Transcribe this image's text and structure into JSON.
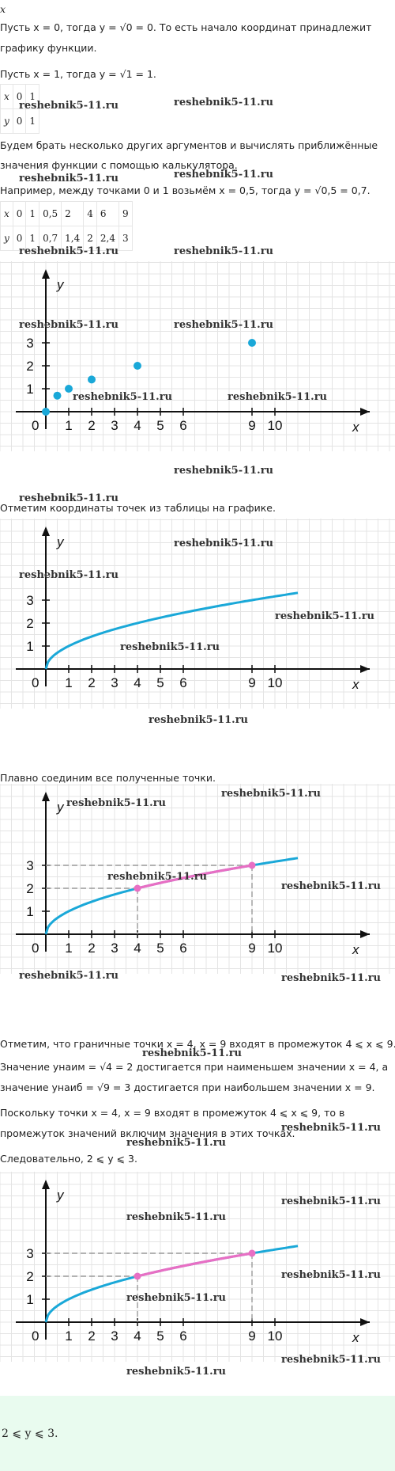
{
  "header": {
    "var": "x"
  },
  "p1": "Пусть x = 0, тогда y = √0 = 0. То есть начало координат принадлежит",
  "p1b": "графику функции.",
  "p2": "Пусть x = 1, тогда y = √1 = 1.",
  "table1": {
    "rows": [
      [
        "x",
        "0",
        "1"
      ],
      [
        "y",
        "0",
        "1"
      ]
    ]
  },
  "p3": "Будем брать несколько других аргументов и вычислять приближённые",
  "p3b": "значения функции с помощью калькулятора.",
  "p4": "Например, между точками 0 и 1 возьмём x = 0,5, тогда y = √0,5 = 0,7.",
  "table2": {
    "rows": [
      [
        "x",
        "0",
        "1",
        "0,5",
        "2",
        "4",
        "6",
        "9"
      ],
      [
        "y",
        "0",
        "1",
        "0,7",
        "1,4",
        "2",
        "2,4",
        "3"
      ]
    ]
  },
  "watermark": "reshebnik5-11.ru",
  "graph_labels": {
    "x": "x",
    "y": "y",
    "origin": "0"
  },
  "chart_data": [
    {
      "type": "scatter",
      "function": "y = √x",
      "points": [
        [
          0,
          0
        ],
        [
          0.5,
          0.7
        ],
        [
          1,
          1
        ],
        [
          2,
          1.4
        ],
        [
          4,
          2
        ],
        [
          9,
          3
        ]
      ],
      "xticks": [
        "1",
        "2",
        "3",
        "4",
        "5",
        "6",
        "9",
        "10"
      ],
      "yticks": [
        "1",
        "2",
        "3"
      ],
      "point_color": "#1aa8d8"
    },
    {
      "type": "line",
      "function": "y = √x",
      "x_range": [
        0,
        11
      ],
      "line_color": "#1aa8d8",
      "xticks": [
        "1",
        "2",
        "3",
        "4",
        "5",
        "6",
        "9",
        "10"
      ],
      "yticks": [
        "1",
        "2",
        "3"
      ]
    },
    {
      "type": "line",
      "function": "y = √x",
      "x_range": [
        0,
        11
      ],
      "highlight_range": [
        4,
        9
      ],
      "highlight_color": "#e86fc4",
      "marked_points": [
        [
          4,
          2
        ],
        [
          9,
          3
        ]
      ],
      "xticks": [
        "1",
        "2",
        "3",
        "4",
        "5",
        "6",
        "9",
        "10"
      ],
      "yticks": [
        "1",
        "2",
        "3"
      ]
    },
    {
      "type": "line",
      "function": "y = √x",
      "x_range": [
        0,
        11
      ],
      "highlight_range": [
        4,
        9
      ],
      "highlight_color": "#e86fc4",
      "marked_points": [
        [
          4,
          2
        ],
        [
          9,
          3
        ]
      ],
      "xticks": [
        "1",
        "2",
        "3",
        "4",
        "5",
        "6",
        "9",
        "10"
      ],
      "yticks": [
        "1",
        "2",
        "3"
      ]
    }
  ],
  "p5": "Отметим координаты точек из таблицы на графике.",
  "p6": "Плавно соединим все полученные точки.",
  "p7": "Отметим, что граничные точки x = 4, x = 9 входят в промежуток 4 ⩽ x ⩽ 9.",
  "p8": "Значение yнаим = √4 = 2 достигается при наименьшем значении x = 4, а",
  "p8b": "значение yнаиб = √9 = 3 достигается при наибольшем значении x = 9.",
  "p9": "Поскольку точки x = 4, x = 9 входят в промежуток 4 ⩽ x ⩽ 9, то в",
  "p9b": "промежуток значений включим значения в этих точках.",
  "p10": "Следовательно, 2 ⩽ y ⩽ 3.",
  "answer": "2 ⩽ y ⩽ 3."
}
